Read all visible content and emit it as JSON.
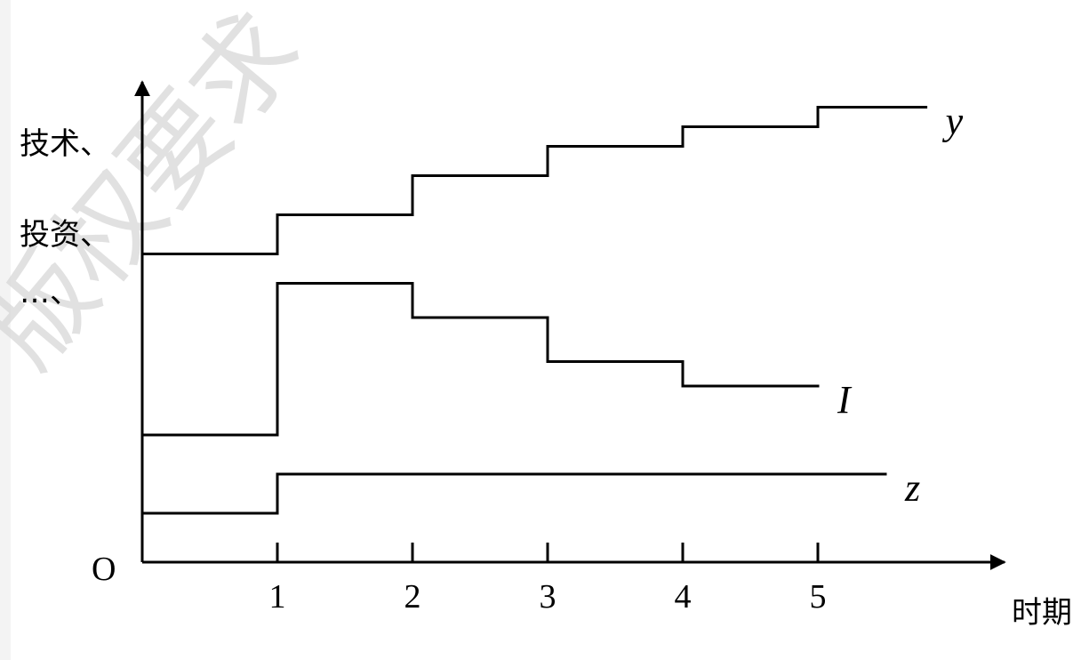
{
  "watermark": "版权要求",
  "chart_data": {
    "type": "line",
    "step": true,
    "origin_label": "O",
    "ylabel_lines": [
      "技术、",
      "投资、",
      "…、"
    ],
    "xlabel": "时期",
    "x_ticks": [
      "1",
      "2",
      "3",
      "4",
      "5"
    ],
    "xlim": [
      0,
      6
    ],
    "ylim": [
      0,
      10
    ],
    "series": [
      {
        "name": "y",
        "x": [
          0,
          1,
          2,
          3,
          4,
          5,
          5.8
        ],
        "y": [
          6.3,
          7.1,
          7.9,
          8.5,
          8.9,
          9.3,
          9.3
        ]
      },
      {
        "name": "I",
        "x": [
          0,
          1,
          2,
          3,
          4,
          5
        ],
        "y": [
          2.6,
          5.7,
          5.0,
          4.1,
          3.6,
          3.6
        ]
      },
      {
        "name": "z",
        "x": [
          0,
          1,
          5.5
        ],
        "y": [
          1.0,
          1.8,
          1.8
        ]
      }
    ]
  }
}
